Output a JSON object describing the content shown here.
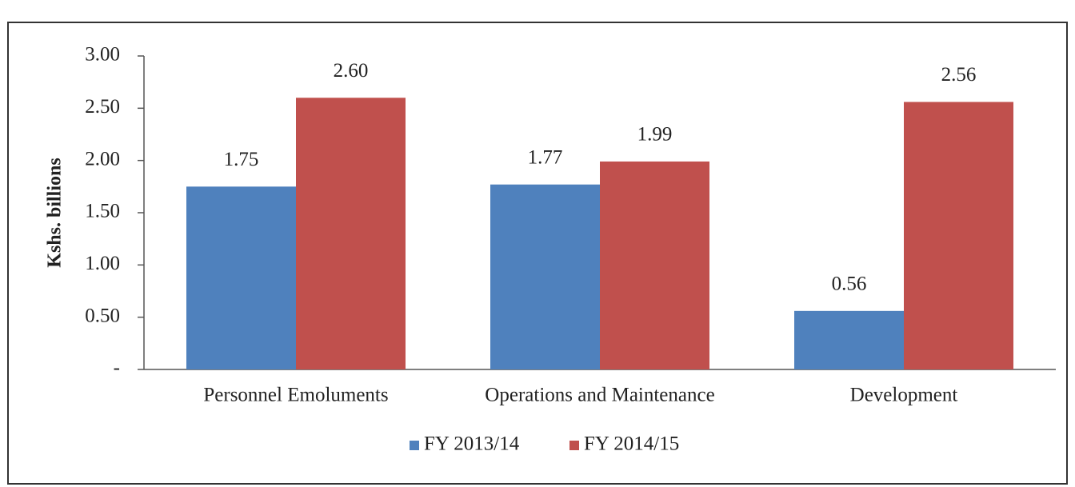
{
  "chart_data": {
    "type": "bar",
    "y_label": "Kshs. billions",
    "categories": [
      "Personnel Emoluments",
      "Operations and Maintenance",
      "Development"
    ],
    "series": [
      {
        "name": "FY 2013/14",
        "color": "#4f81bd",
        "values": [
          1.75,
          1.77,
          0.56
        ]
      },
      {
        "name": "FY 2014/15",
        "color": "#c0504d",
        "values": [
          2.6,
          1.99,
          2.56
        ],
        "value_labels": [
          "2.60",
          "1.99",
          "2.56"
        ]
      }
    ],
    "ylim": [
      0,
      3
    ],
    "yticks": [
      {
        "value": 0,
        "label": "-"
      },
      {
        "value": 0.5,
        "label": "0.50"
      },
      {
        "value": 1,
        "label": "1.00"
      },
      {
        "value": 1.5,
        "label": "1.50"
      },
      {
        "value": 2,
        "label": "2.00"
      },
      {
        "value": 2.5,
        "label": "2.50"
      },
      {
        "value": 3,
        "label": "3.00"
      }
    ],
    "legend": "bottom"
  }
}
